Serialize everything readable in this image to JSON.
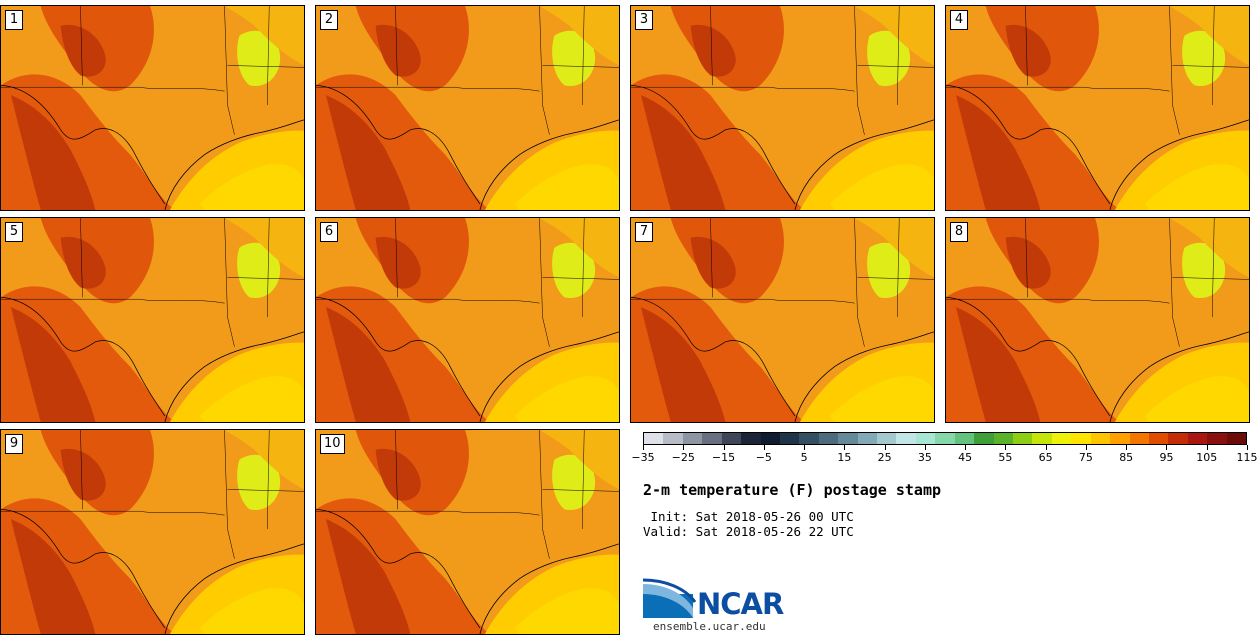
{
  "product": {
    "title": "2-m temperature (F) postage stamp",
    "init_line": " Init: Sat 2018-05-26 00 UTC",
    "valid_line": "Valid: Sat 2018-05-26 22 UTC"
  },
  "members": [
    "1",
    "2",
    "3",
    "4",
    "5",
    "6",
    "7",
    "8",
    "9",
    "10"
  ],
  "colorbar": {
    "tick_labels": [
      "−35",
      "−25",
      "−15",
      "−5",
      "5",
      "15",
      "25",
      "35",
      "45",
      "55",
      "65",
      "75",
      "85",
      "95",
      "105",
      "115"
    ],
    "colors": [
      "#dfe1e8",
      "#b8bcc6",
      "#8e95a3",
      "#676f80",
      "#3e4658",
      "#1c2538",
      "#0f1c30",
      "#1e3448",
      "#344e62",
      "#4c6b7c",
      "#66899a",
      "#84a9b6",
      "#a3c9cf",
      "#c2e6e6",
      "#a8e6d4",
      "#86d8a8",
      "#63c27c",
      "#3f9e3a",
      "#5ab22a",
      "#8fcc14",
      "#c4e40a",
      "#eef20a",
      "#ffe400",
      "#ffc400",
      "#ffa000",
      "#f27600",
      "#e04c00",
      "#c42c08",
      "#a81810",
      "#8a1010",
      "#6c0c08"
    ]
  },
  "logo": {
    "name": "NCAR",
    "url": "ensemble.ucar.edu"
  }
}
